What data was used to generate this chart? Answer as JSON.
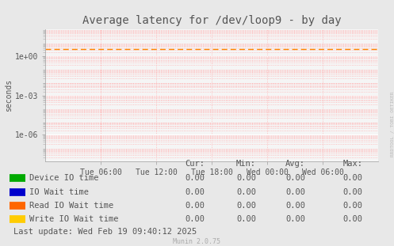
{
  "title": "Average latency for /dev/loop9 - by day",
  "ylabel": "seconds",
  "background_color": "#e8e8e8",
  "plot_background_color": "#f5f5f5",
  "grid_color_major": "#ffffff",
  "grid_color_minor": "#ffb0b0",
  "axis_color": "#aaaaaa",
  "text_color": "#555555",
  "x_tick_labels": [
    "Tue 06:00",
    "Tue 12:00",
    "Tue 18:00",
    "Wed 00:00",
    "Wed 06:00"
  ],
  "x_tick_positions": [
    0.1667,
    0.3333,
    0.5,
    0.6667,
    0.8333
  ],
  "yticks": [
    1e-06,
    0.001,
    1.0
  ],
  "ytick_labels": [
    "1e-06",
    "1e-03",
    "1e+00"
  ],
  "dashed_line_value": 3.5,
  "dashed_line_color": "#ff8800",
  "legend_entries": [
    {
      "label": "Device IO time",
      "color": "#00aa00"
    },
    {
      "label": "IO Wait time",
      "color": "#0000cc"
    },
    {
      "label": "Read IO Wait time",
      "color": "#ff6600"
    },
    {
      "label": "Write IO Wait time",
      "color": "#ffcc00"
    }
  ],
  "table_headers": [
    "Cur:",
    "Min:",
    "Avg:",
    "Max:"
  ],
  "table_rows": [
    [
      "Device IO time",
      "0.00",
      "0.00",
      "0.00",
      "0.00"
    ],
    [
      "IO Wait time",
      "0.00",
      "0.00",
      "0.00",
      "0.00"
    ],
    [
      "Read IO Wait time",
      "0.00",
      "0.00",
      "0.00",
      "0.00"
    ],
    [
      "Write IO Wait time",
      "0.00",
      "0.00",
      "0.00",
      "0.00"
    ]
  ],
  "footer_text": "Last update: Wed Feb 19 09:40:12 2025",
  "munin_text": "Munin 2.0.75",
  "watermark": "RRDTOOL / TOBI OETIKER",
  "title_fontsize": 10,
  "axis_fontsize": 7,
  "legend_fontsize": 7.5,
  "table_fontsize": 7.5
}
